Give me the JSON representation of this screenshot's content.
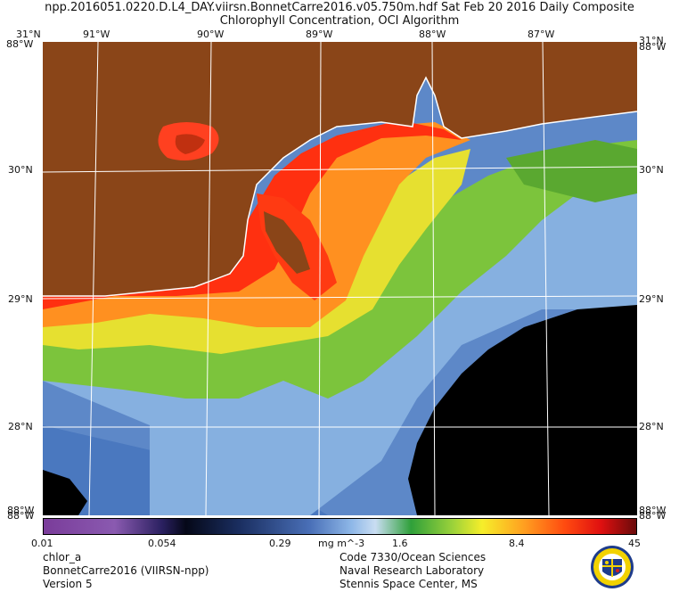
{
  "header": {
    "title_line1": "npp.2016051.0220.D.L4_DAY.viirsn.BonnetCarre2016.v05.750m.hdf     Sat Feb 20 2016 Daily Composite",
    "title_line2": "Chlorophyll Concentration, OCI Algorithm"
  },
  "map": {
    "top_lon_labels": [
      "91°W",
      "90°W",
      "89°W",
      "88°W",
      "87°W"
    ],
    "lat_labels": [
      "30°N",
      "29°N",
      "28°N"
    ],
    "corner_labels": {
      "top_left": "31°N",
      "top_left_b": "88°W",
      "top_right": "31°N",
      "top_right_b": "88°W",
      "bottom_left": "88°W",
      "bottom_left_b": "88°W",
      "bottom_right": "88°W",
      "bottom_right_b": "88°W"
    },
    "land_color": "#8a4518",
    "no_data_color": "#000000",
    "grid_color": "#ffffff"
  },
  "colorbar": {
    "ticks": [
      "0.01",
      "0.054",
      "0.29",
      "1.6",
      "8.4",
      "45"
    ],
    "unit": "mg m^-3",
    "scale": "log",
    "range": [
      0.01,
      45
    ]
  },
  "footer": {
    "left": [
      "chlor_a",
      "BonnetCarre2016 (VIIRSN-npp)",
      "Version 5"
    ],
    "right": [
      "Code 7330/Ocean Sciences",
      "Naval Research Laboratory",
      "Stennis Space Center, MS"
    ]
  },
  "logo": {
    "icon": "nrl-seal-icon",
    "ring_color": "#f2d200",
    "center_color": "#1e3c8c"
  }
}
